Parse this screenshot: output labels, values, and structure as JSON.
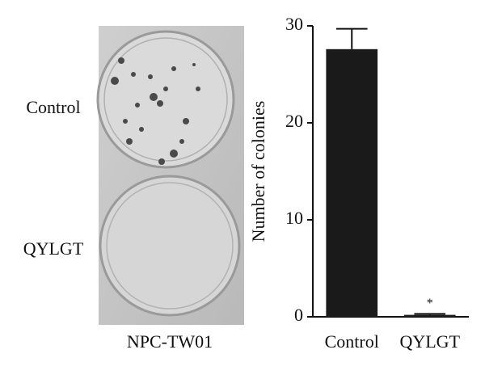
{
  "photo": {
    "row_labels": [
      "Control",
      "QYLGT"
    ],
    "caption": "NPC-TW01"
  },
  "chart_data": {
    "type": "bar",
    "y_label": "Number of colonies",
    "categories": [
      "Control",
      "QYLGT"
    ],
    "values": [
      27.6,
      0.2
    ],
    "errors": [
      2.1,
      0.1
    ],
    "color": "#1a1a1a",
    "ylim": [
      0,
      30
    ],
    "yticks": [
      0,
      10,
      20,
      30
    ],
    "annotation": "*",
    "annotation_category": 1
  }
}
